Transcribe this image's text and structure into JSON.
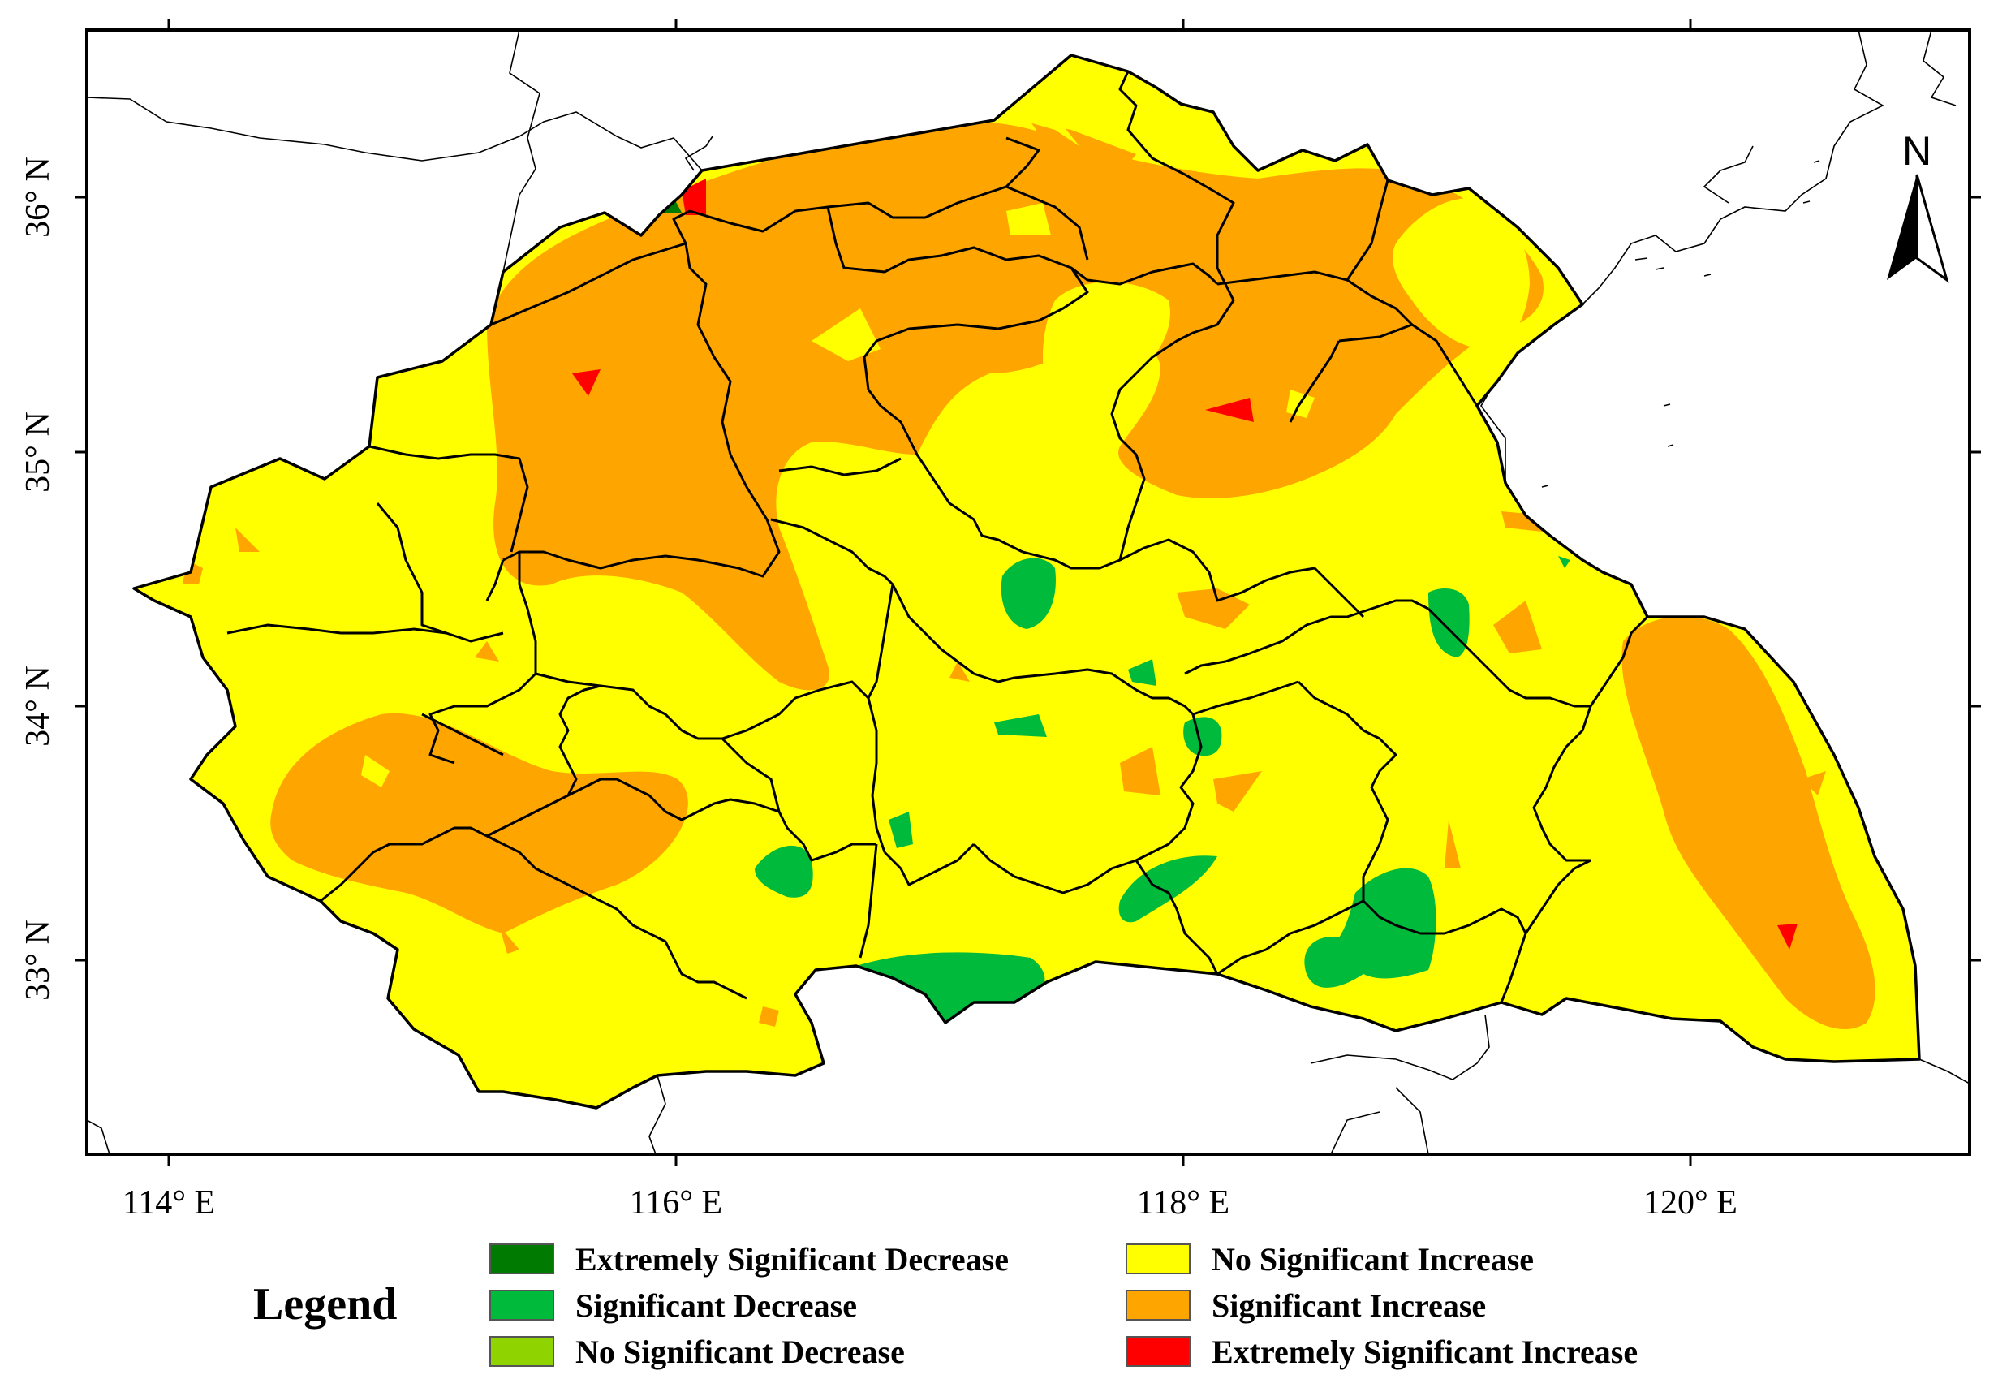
{
  "axes": {
    "x_ticks": [
      "114° E",
      "116° E",
      "118° E",
      "120° E"
    ],
    "y_ticks": [
      "36° N",
      "35° N",
      "34° N",
      "33° N"
    ]
  },
  "north_arrow": {
    "label": "N"
  },
  "legend": {
    "title": "Legend",
    "items": [
      {
        "label": "Extremely Significant Decrease",
        "color": "#007a00"
      },
      {
        "label": "Significant Decrease",
        "color": "#00bb3b"
      },
      {
        "label": "No Significant Decrease",
        "color": "#8fd400"
      },
      {
        "label": "No Significant Increase",
        "color": "#ffff00"
      },
      {
        "label": "Significant Increase",
        "color": "#ffa500"
      },
      {
        "label": "Extremely Significant Increase",
        "color": "#ff0000"
      }
    ]
  },
  "colors": {
    "region_fill": "#ffff00",
    "increase_fill": "#ffa500",
    "extreme_increase_fill": "#ff0000",
    "decrease_fill": "#00bb3b",
    "extreme_decrease_fill": "#007a00",
    "boundary": "#000000"
  }
}
